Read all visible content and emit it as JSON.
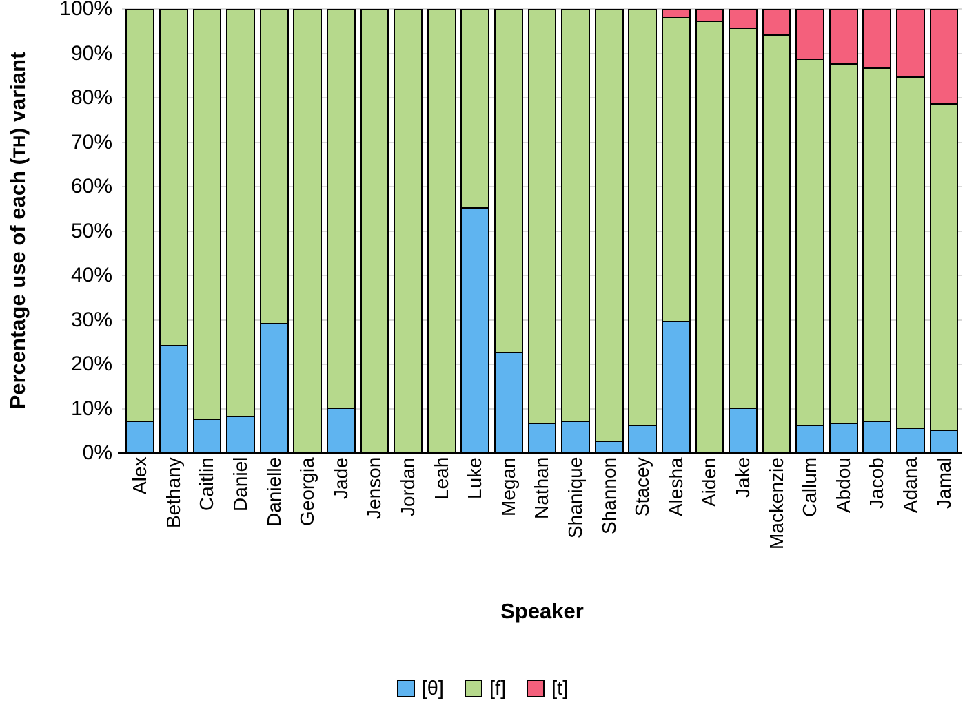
{
  "chart_data": {
    "type": "bar",
    "subtype": "stacked-percentage",
    "title": "",
    "xlabel": "Speaker",
    "ylabel": "Percentage use of each (TH) variant",
    "ylabel_parts": {
      "prefix": "Percentage use of each (",
      "smallcaps": "TH",
      "suffix": ") variant"
    },
    "ylim": [
      0,
      100
    ],
    "grid": "horizontal",
    "legend_position": "bottom-center",
    "yticks": [
      {
        "label": "0%",
        "value": 0
      },
      {
        "label": "10%",
        "value": 10
      },
      {
        "label": "20%",
        "value": 20
      },
      {
        "label": "30%",
        "value": 30
      },
      {
        "label": "40%",
        "value": 40
      },
      {
        "label": "50%",
        "value": 50
      },
      {
        "label": "60%",
        "value": 60
      },
      {
        "label": "70%",
        "value": 70
      },
      {
        "label": "80%",
        "value": 80
      },
      {
        "label": "90%",
        "value": 90
      },
      {
        "label": "100%",
        "value": 100
      }
    ],
    "categories": [
      "Alex",
      "Bethany",
      "Caitlin",
      "Daniel",
      "Danielle",
      "Georgia",
      "Jade",
      "Jenson",
      "Jordan",
      "Leah",
      "Luke",
      "Megan",
      "Nathan",
      "Shanique",
      "Shannon",
      "Stacey",
      "Alesha",
      "Aiden",
      "Jake",
      "Mackenzie",
      "Callum",
      "Abdou",
      "Jacob",
      "Adana",
      "Jamal"
    ],
    "series": [
      {
        "key": "theta",
        "name": "[θ]",
        "color": "#5FB4F0",
        "values": [
          7,
          24,
          7.5,
          8,
          29,
          0,
          10,
          0,
          0,
          0,
          55,
          22.5,
          6.5,
          7,
          2.5,
          6,
          29.5,
          0,
          10,
          0,
          6,
          6.5,
          7,
          5.5,
          5
        ]
      },
      {
        "key": "f",
        "name": "[f]",
        "color": "#B6D98C",
        "values": [
          93,
          76,
          92.5,
          92,
          71,
          100,
          90,
          100,
          100,
          100,
          45,
          77.5,
          93.5,
          93,
          97.5,
          94,
          68.5,
          97,
          85.5,
          94,
          82.5,
          81,
          79.5,
          79,
          73.5
        ]
      },
      {
        "key": "t",
        "name": "[t]",
        "color": "#F4607C",
        "values": [
          0,
          0,
          0,
          0,
          0,
          0,
          0,
          0,
          0,
          0,
          0,
          0,
          0,
          0,
          0,
          0,
          2,
          3,
          4.5,
          6,
          11.5,
          12.5,
          13.5,
          15.5,
          21.5
        ]
      }
    ]
  }
}
